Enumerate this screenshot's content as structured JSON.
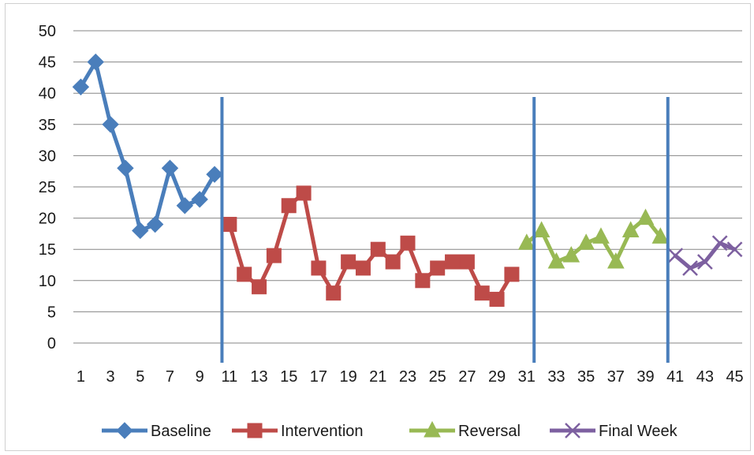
{
  "chart_data": {
    "type": "line",
    "title": "",
    "xlabel": "",
    "ylabel": "",
    "xlim": [
      1,
      45
    ],
    "ylim": [
      0,
      50
    ],
    "y_ticks": [
      0,
      5,
      10,
      15,
      20,
      25,
      30,
      35,
      40,
      45,
      50
    ],
    "x_tick_labels": [
      "1",
      "3",
      "5",
      "7",
      "9",
      "11",
      "13",
      "15",
      "17",
      "19",
      "21",
      "23",
      "25",
      "27",
      "29",
      "31",
      "33",
      "35",
      "37",
      "39",
      "41",
      "43",
      "45"
    ],
    "grid": "horizontal",
    "legend_position": "bottom",
    "phase_lines_x": [
      10,
      31,
      40
    ],
    "phase_line_color": "#4a7ebb",
    "series": [
      {
        "name": "Baseline",
        "color": "#4a7ebb",
        "marker": "diamond",
        "points": [
          [
            1,
            41
          ],
          [
            2,
            45
          ],
          [
            3,
            35
          ],
          [
            4,
            28
          ],
          [
            5,
            18
          ],
          [
            6,
            19
          ],
          [
            7,
            28
          ],
          [
            8,
            22
          ],
          [
            9,
            23
          ],
          [
            10,
            27
          ]
        ]
      },
      {
        "name": "Intervention",
        "color": "#be4b48",
        "marker": "square",
        "points": [
          [
            11,
            19
          ],
          [
            12,
            11
          ],
          [
            13,
            9
          ],
          [
            14,
            14
          ],
          [
            15,
            22
          ],
          [
            16,
            24
          ],
          [
            17,
            12
          ],
          [
            18,
            8
          ],
          [
            19,
            13
          ],
          [
            20,
            12
          ],
          [
            21,
            15
          ],
          [
            22,
            13
          ],
          [
            23,
            16
          ],
          [
            24,
            10
          ],
          [
            25,
            12
          ],
          [
            26,
            13
          ],
          [
            27,
            13
          ],
          [
            28,
            8
          ],
          [
            29,
            7
          ],
          [
            30,
            11
          ]
        ]
      },
      {
        "name": "Reversal",
        "color": "#98b954",
        "marker": "triangle",
        "points": [
          [
            31,
            16
          ],
          [
            32,
            18
          ],
          [
            33,
            13
          ],
          [
            34,
            14
          ],
          [
            35,
            16
          ],
          [
            36,
            17
          ],
          [
            37,
            13
          ],
          [
            38,
            18
          ],
          [
            39,
            20
          ],
          [
            40,
            17
          ]
        ]
      },
      {
        "name": "Final Week",
        "color": "#7d60a0",
        "marker": "x",
        "points": [
          [
            41,
            14
          ],
          [
            42,
            12
          ],
          [
            43,
            13
          ],
          [
            44,
            16
          ],
          [
            45,
            15
          ]
        ]
      }
    ]
  }
}
